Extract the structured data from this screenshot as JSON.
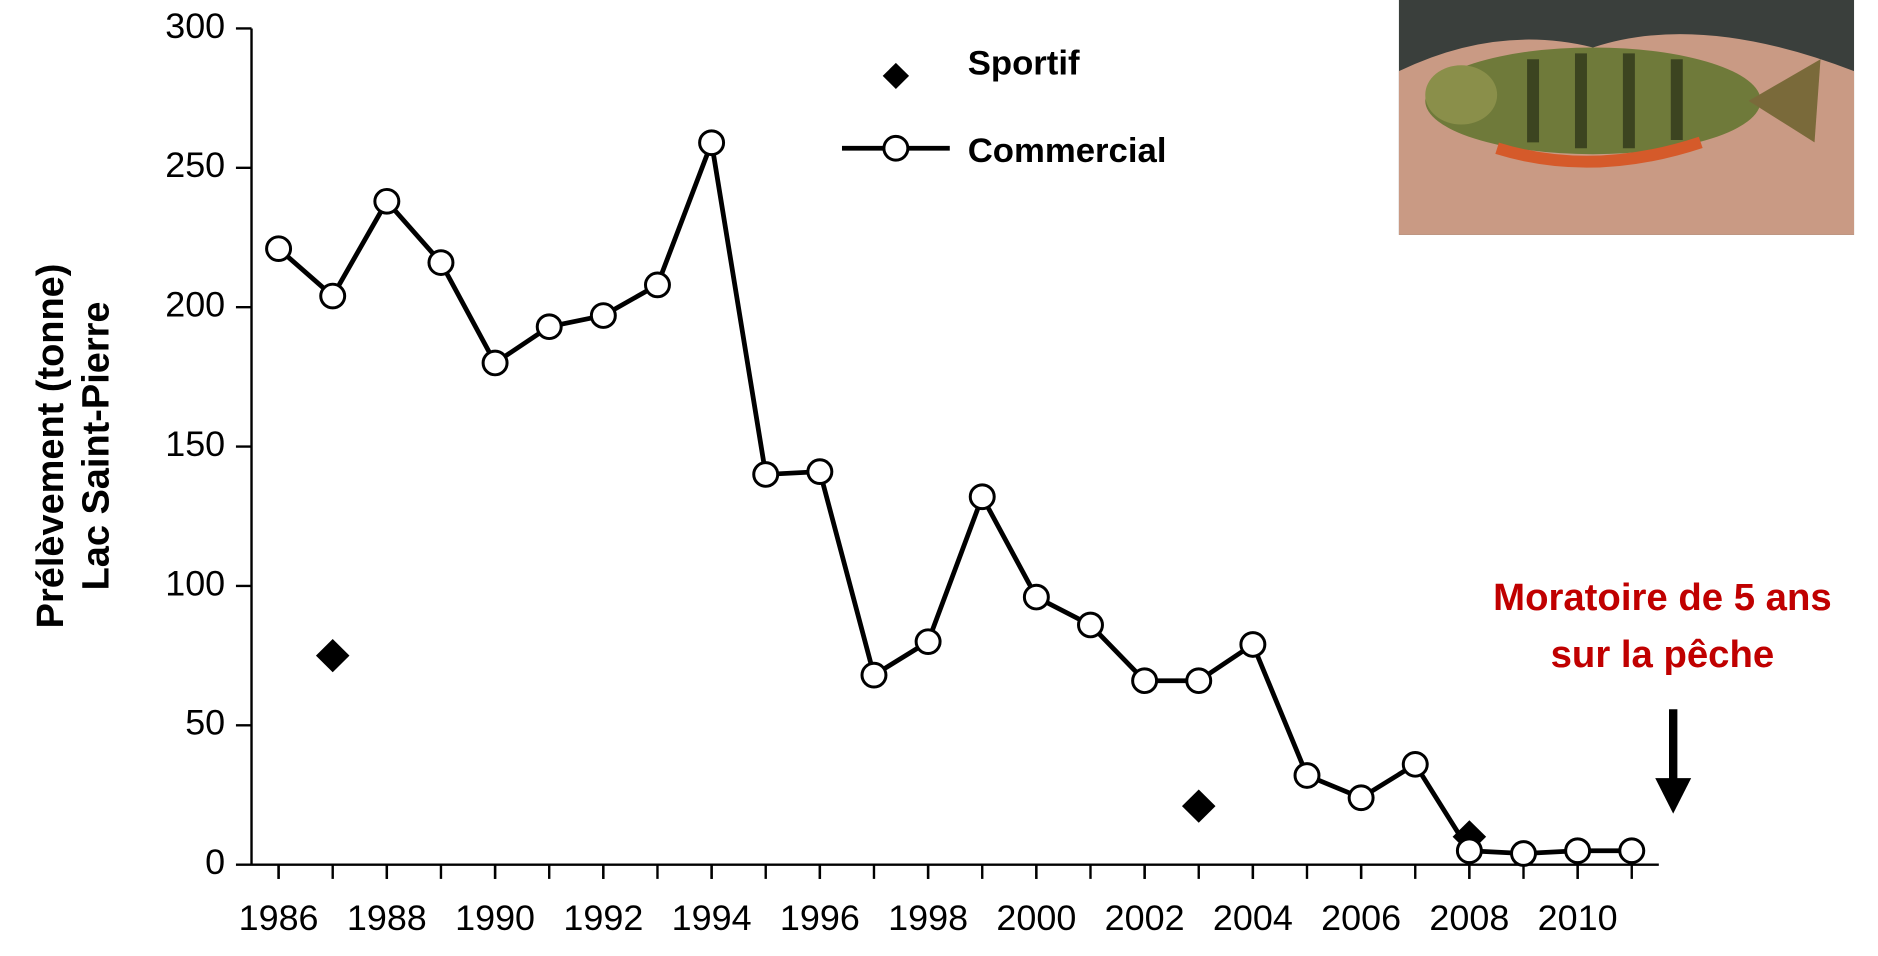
{
  "chart_data": {
    "type": "line",
    "ylabel": [
      "Prélèvement (tonne)",
      "Lac Saint-Pierre"
    ],
    "x": [
      1986,
      1987,
      1988,
      1989,
      1990,
      1991,
      1992,
      1993,
      1994,
      1995,
      1996,
      1997,
      1998,
      1999,
      2000,
      2001,
      2002,
      2003,
      2004,
      2005,
      2006,
      2007,
      2008,
      2009,
      2010,
      2011
    ],
    "series": [
      {
        "name": "Sportif",
        "color": "#000000",
        "marker": "diamond",
        "line": false,
        "values": [
          null,
          75,
          null,
          null,
          null,
          null,
          null,
          null,
          null,
          null,
          null,
          null,
          null,
          null,
          null,
          null,
          null,
          21,
          null,
          null,
          null,
          null,
          10,
          null,
          null,
          null
        ]
      },
      {
        "name": "Commercial",
        "color": "#000000",
        "marker": "circle",
        "line": true,
        "values": [
          221,
          204,
          238,
          216,
          180,
          193,
          197,
          208,
          259,
          140,
          141,
          68,
          80,
          132,
          96,
          86,
          66,
          66,
          79,
          32,
          24,
          36,
          5,
          4,
          5,
          5
        ]
      }
    ],
    "xlim": [
      1985.5,
      2011.5
    ],
    "xticks": [
      1986,
      1988,
      1990,
      1992,
      1994,
      1996,
      1998,
      2000,
      2002,
      2004,
      2006,
      2008,
      2010
    ],
    "ylim": [
      0,
      300
    ],
    "yticks": [
      0,
      50,
      100,
      150,
      200,
      250,
      300
    ],
    "legend": "top",
    "annotation": {
      "lines": [
        "Moratoire de 5 ans",
        "sur la pêche"
      ],
      "color": "#c00000"
    }
  }
}
